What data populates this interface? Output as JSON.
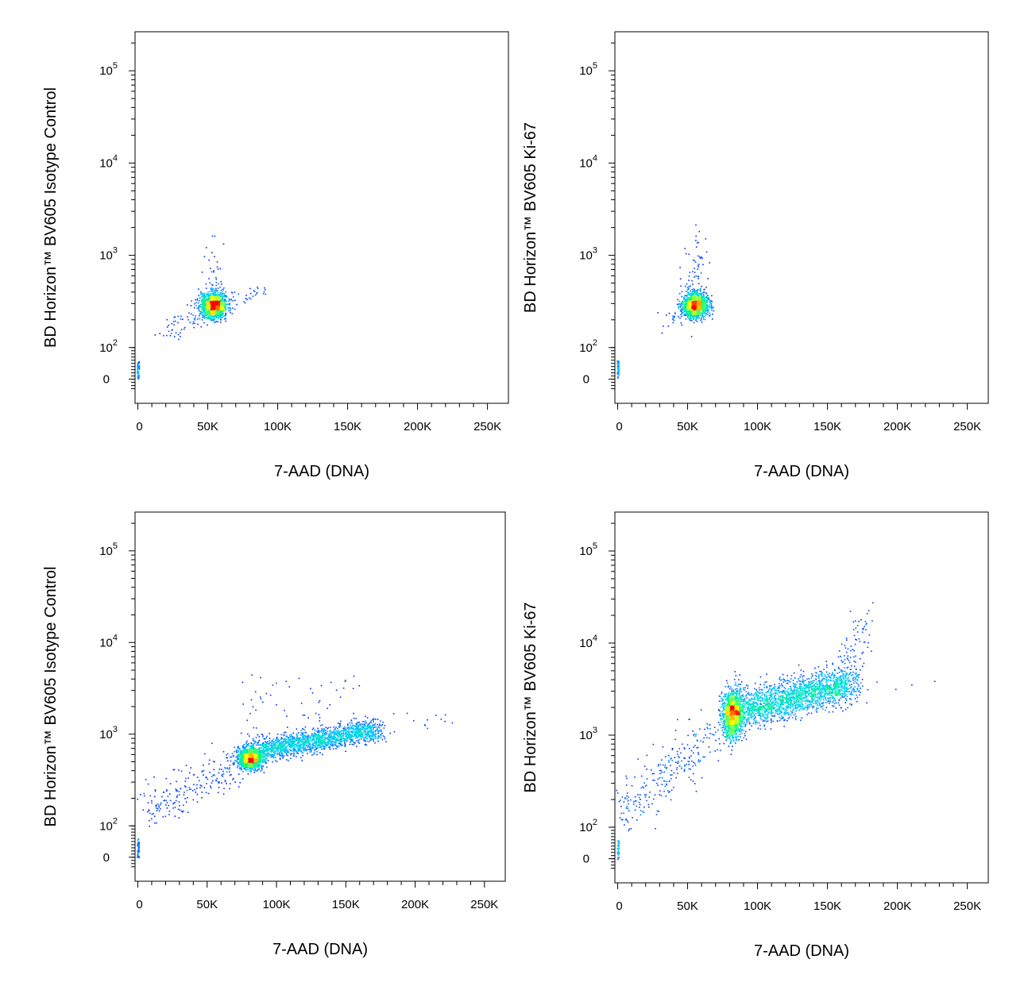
{
  "chart_data": [
    {
      "type": "scatter",
      "xlabel": "7-AAD (DNA)",
      "ylabel": "BD Horizon™ BV605 Isotype Control",
      "x_ticks": [
        "0",
        "50K",
        "100K",
        "150K",
        "200K",
        "250K"
      ],
      "x_tick_values": [
        0,
        50000,
        100000,
        150000,
        200000,
        250000
      ],
      "xlim": [
        -2000,
        265000
      ],
      "y_scale": "biexponential",
      "y_ticks": [
        {
          "base": "0",
          "exp": ""
        },
        {
          "base": "10",
          "exp": "2"
        },
        {
          "base": "10",
          "exp": "3"
        },
        {
          "base": "10",
          "exp": "4"
        },
        {
          "base": "10",
          "exp": "5"
        }
      ],
      "y_tick_values": [
        0,
        100,
        1000,
        10000,
        100000
      ],
      "ylim": [
        -30,
        250000
      ],
      "colormap": [
        "#0000ff",
        "#00c8ff",
        "#00ff80",
        "#ffff00",
        "#ff0000"
      ],
      "populations": [
        {
          "kind": "blob",
          "x": 54000,
          "y": 290,
          "sx": 4500,
          "sy": 0.07,
          "n": 1400,
          "tail_up": 0.15
        },
        {
          "kind": "smear",
          "x0": 20000,
          "y0": 150,
          "x1": 48000,
          "y1": 250,
          "spread_x": 4000,
          "spread_y": 0.07,
          "n": 60
        },
        {
          "kind": "smear",
          "x0": 60000,
          "y0": 320,
          "x1": 88000,
          "y1": 420,
          "spread_x": 3000,
          "spread_y": 0.04,
          "n": 40
        },
        {
          "kind": "axis",
          "x": 0,
          "y": 60,
          "n": 50
        }
      ]
    },
    {
      "type": "scatter",
      "xlabel": "7-AAD (DNA)",
      "ylabel": "BD Horizon™ BV605 Ki-67",
      "x_ticks": [
        "0",
        "50K",
        "100K",
        "150K",
        "200K",
        "250K"
      ],
      "x_tick_values": [
        0,
        50000,
        100000,
        150000,
        200000,
        250000
      ],
      "xlim": [
        -2000,
        265000
      ],
      "y_scale": "biexponential",
      "y_ticks": [
        {
          "base": "0",
          "exp": ""
        },
        {
          "base": "10",
          "exp": "2"
        },
        {
          "base": "10",
          "exp": "3"
        },
        {
          "base": "10",
          "exp": "4"
        },
        {
          "base": "10",
          "exp": "5"
        }
      ],
      "y_tick_values": [
        0,
        100,
        1000,
        10000,
        100000
      ],
      "ylim": [
        -30,
        250000
      ],
      "colormap": [
        "#0000ff",
        "#00c8ff",
        "#00ff80",
        "#ffff00",
        "#ff0000"
      ],
      "populations": [
        {
          "kind": "blob",
          "x": 55000,
          "y": 290,
          "sx": 4500,
          "sy": 0.07,
          "n": 1400,
          "tail_up": 0.35
        },
        {
          "kind": "smear",
          "x0": 30000,
          "y0": 190,
          "x1": 45000,
          "y1": 240,
          "spread_x": 3000,
          "spread_y": 0.05,
          "n": 20
        },
        {
          "kind": "axis",
          "x": 0,
          "y": 60,
          "n": 40
        }
      ]
    },
    {
      "type": "scatter",
      "xlabel": "7-AAD (DNA)",
      "ylabel": "BD Horizon™ BV605 Isotype Control",
      "x_ticks": [
        "0",
        "50K",
        "100K",
        "150K",
        "200K",
        "250K"
      ],
      "x_tick_values": [
        0,
        50000,
        100000,
        150000,
        200000,
        250000
      ],
      "xlim": [
        -2000,
        265000
      ],
      "y_scale": "biexponential",
      "y_ticks": [
        {
          "base": "0",
          "exp": ""
        },
        {
          "base": "10",
          "exp": "2"
        },
        {
          "base": "10",
          "exp": "3"
        },
        {
          "base": "10",
          "exp": "4"
        },
        {
          "base": "10",
          "exp": "5"
        }
      ],
      "y_tick_values": [
        0,
        100,
        1000,
        10000,
        100000
      ],
      "ylim": [
        -30,
        250000
      ],
      "colormap": [
        "#0000ff",
        "#00c8ff",
        "#00ff80",
        "#ffff00",
        "#ff0000"
      ],
      "populations": [
        {
          "kind": "blob",
          "x": 81000,
          "y": 550,
          "sx": 4500,
          "sy": 0.06,
          "n": 1200,
          "tail_up": 0.12
        },
        {
          "kind": "smear",
          "x0": 88000,
          "y0": 680,
          "x1": 172000,
          "y1": 1150,
          "spread_x": 4000,
          "spread_y": 0.06,
          "n": 1700
        },
        {
          "kind": "smear",
          "x0": 5000,
          "y0": 150,
          "x1": 70000,
          "y1": 450,
          "spread_x": 5000,
          "spread_y": 0.12,
          "n": 220
        },
        {
          "kind": "smear",
          "x0": 175000,
          "y0": 1250,
          "x1": 225000,
          "y1": 1500,
          "spread_x": 4000,
          "spread_y": 0.05,
          "n": 15
        },
        {
          "kind": "scatter",
          "x0": 80000,
          "x1": 160000,
          "y_lo": 1500,
          "y_hi": 4500,
          "n": 40
        },
        {
          "kind": "axis",
          "x": 0,
          "y": 60,
          "n": 40
        }
      ]
    },
    {
      "type": "scatter",
      "xlabel": "7-AAD (DNA)",
      "ylabel": "BD Horizon™ BV605 Ki-67",
      "x_ticks": [
        "0",
        "50K",
        "100K",
        "150K",
        "200K",
        "250K"
      ],
      "x_tick_values": [
        0,
        50000,
        100000,
        150000,
        200000,
        250000
      ],
      "xlim": [
        -2000,
        265000
      ],
      "y_scale": "biexponential",
      "y_ticks": [
        {
          "base": "0",
          "exp": ""
        },
        {
          "base": "10",
          "exp": "2"
        },
        {
          "base": "10",
          "exp": "3"
        },
        {
          "base": "10",
          "exp": "4"
        },
        {
          "base": "10",
          "exp": "5"
        }
      ],
      "y_tick_values": [
        0,
        100,
        1000,
        10000,
        100000
      ],
      "ylim": [
        -30,
        250000
      ],
      "colormap": [
        "#0000ff",
        "#00c8ff",
        "#00ff80",
        "#ffff00",
        "#ff0000"
      ],
      "populations": [
        {
          "kind": "blob",
          "x": 82000,
          "y": 1700,
          "sx": 4000,
          "sy": 0.13,
          "n": 1300,
          "tail_up": 0.05
        },
        {
          "kind": "smear",
          "x0": 90000,
          "y0": 1900,
          "x1": 168000,
          "y1": 3800,
          "spread_x": 5000,
          "spread_y": 0.1,
          "n": 1900
        },
        {
          "kind": "smear",
          "x0": 2000,
          "y0": 150,
          "x1": 70000,
          "y1": 1000,
          "spread_x": 6000,
          "spread_y": 0.15,
          "n": 260
        },
        {
          "kind": "smear",
          "x0": 162000,
          "y0": 6000,
          "x1": 178000,
          "y1": 20000,
          "spread_x": 4000,
          "spread_y": 0.12,
          "n": 70
        },
        {
          "kind": "scatter",
          "x0": 180000,
          "x1": 245000,
          "y_lo": 3000,
          "y_hi": 5000,
          "n": 4
        },
        {
          "kind": "axis",
          "x": 0,
          "y": 60,
          "n": 40
        }
      ]
    }
  ]
}
